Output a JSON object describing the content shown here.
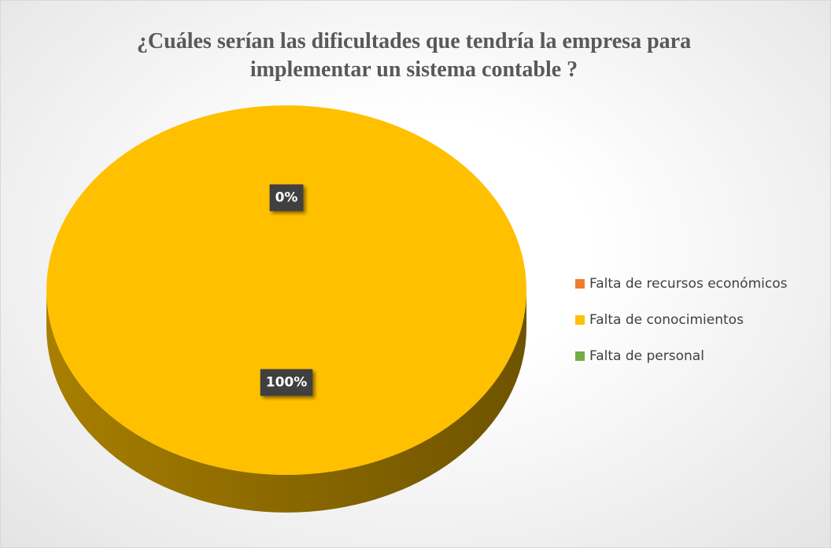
{
  "chart_data": {
    "type": "pie",
    "title": "¿Cuáles serían las dificultades que tendría la empresa para implementar un sistema contable ?",
    "categories": [
      "Falta de recursos económicos",
      "Falta de conocimientos",
      "Falta de personal"
    ],
    "values": [
      0,
      100,
      0
    ],
    "value_labels": [
      "0%",
      "100%",
      null
    ],
    "colors": [
      "#ed7d31",
      "#ffc000",
      "#70ad47"
    ],
    "legend": "right"
  }
}
